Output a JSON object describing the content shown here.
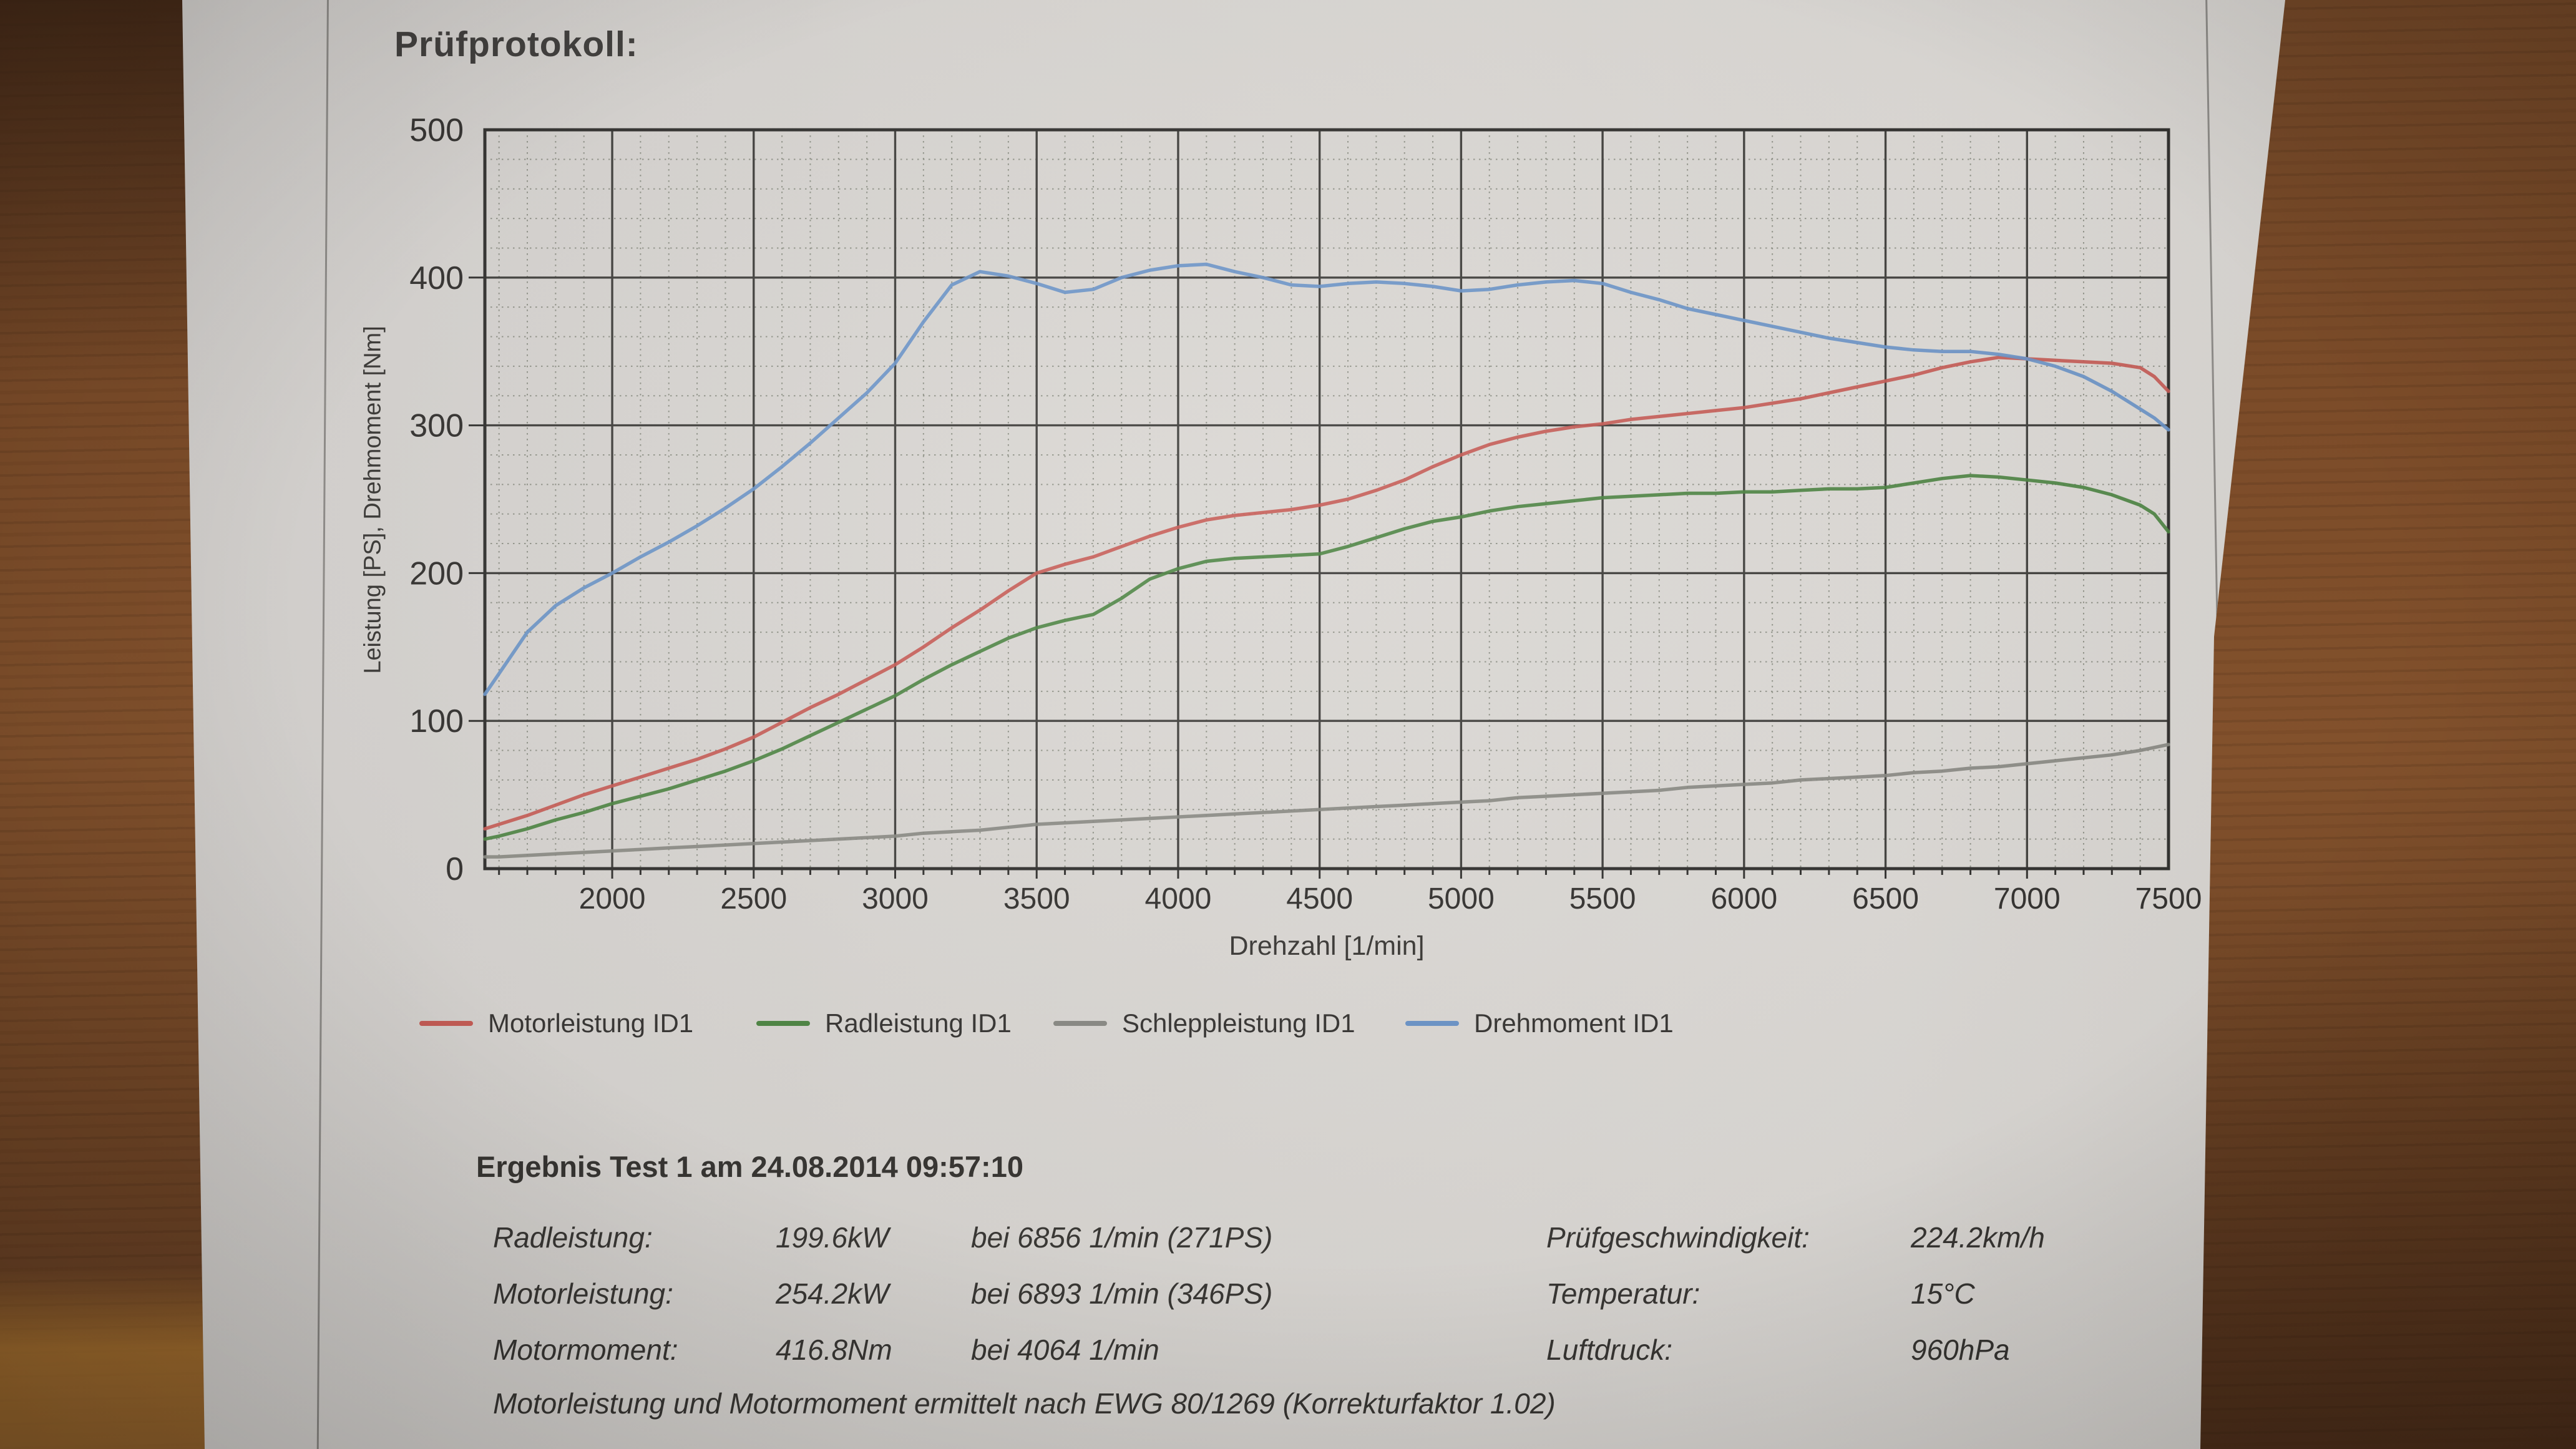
{
  "photo": {
    "description": "printed dyno test protocol lying on a wooden table",
    "colors": {
      "wood": "#7c4c29",
      "paper": "#d8d5d1",
      "ink": "#2f2d2b"
    }
  },
  "document": {
    "title": "Prüfprotokoll:",
    "results": {
      "header": "Ergebnis Test 1 am 24.08.2014 09:57:10",
      "rows": [
        {
          "label": "Radleistung:",
          "value": "199.6kW",
          "at": "bei 6856 1/min (271PS)",
          "label_right": "Prüfgeschwindigkeit:",
          "value_right": "224.2km/h"
        },
        {
          "label": "Motorleistung:",
          "value": "254.2kW",
          "at": "bei 6893 1/min (346PS)",
          "label_right": "Temperatur:",
          "value_right": "15°C"
        },
        {
          "label": "Motormoment:",
          "value": "416.8Nm",
          "at": "bei 4064 1/min",
          "label_right": "Luftdruck:",
          "value_right": "960hPa"
        }
      ],
      "note": "Motorleistung und Motormoment ermittelt nach EWG 80/1269 (Korrekturfaktor 1.02)"
    }
  },
  "chart_data": {
    "type": "line",
    "title": "",
    "xlabel": "Drehzahl [1/min]",
    "ylabel": "Leistung [PS], Drehmoment [Nm]",
    "xlim": [
      1550,
      7500
    ],
    "ylim": [
      0,
      500
    ],
    "x_major_ticks": [
      2000,
      2500,
      3000,
      3500,
      4000,
      4500,
      5000,
      5500,
      6000,
      6500,
      7000,
      7500
    ],
    "y_major_ticks": [
      0,
      100,
      200,
      300,
      400,
      500
    ],
    "x_minor_step": 100,
    "y_minor_step": 20,
    "grid": "major solid + minor dotted",
    "legend_position": "below chart",
    "x": [
      1550,
      1600,
      1700,
      1800,
      1900,
      2000,
      2100,
      2200,
      2300,
      2400,
      2500,
      2600,
      2700,
      2800,
      2900,
      3000,
      3100,
      3200,
      3300,
      3400,
      3500,
      3600,
      3700,
      3800,
      3900,
      4000,
      4100,
      4200,
      4300,
      4400,
      4500,
      4600,
      4700,
      4800,
      4900,
      5000,
      5100,
      5200,
      5300,
      5400,
      5500,
      5600,
      5700,
      5800,
      5900,
      6000,
      6100,
      6200,
      6300,
      6400,
      6500,
      6600,
      6700,
      6800,
      6900,
      7000,
      7100,
      7200,
      7300,
      7400,
      7450,
      7500
    ],
    "series": [
      {
        "name": "Motorleistung ID1",
        "unit": "PS",
        "color": "#c4564f",
        "values": [
          27,
          30,
          36,
          43,
          50,
          56,
          62,
          68,
          74,
          81,
          89,
          99,
          109,
          118,
          128,
          138,
          150,
          163,
          175,
          188,
          200,
          206,
          211,
          218,
          225,
          231,
          236,
          239,
          241,
          243,
          246,
          250,
          256,
          263,
          272,
          280,
          287,
          292,
          296,
          299,
          301,
          304,
          306,
          308,
          310,
          312,
          315,
          318,
          322,
          326,
          330,
          334,
          339,
          343,
          346,
          345,
          344,
          343,
          342,
          339,
          333,
          323
        ]
      },
      {
        "name": "Radleistung ID1",
        "unit": "PS",
        "color": "#47803c",
        "values": [
          20,
          22,
          27,
          33,
          38,
          44,
          49,
          54,
          60,
          66,
          73,
          81,
          90,
          99,
          108,
          117,
          128,
          138,
          147,
          156,
          163,
          168,
          172,
          183,
          196,
          203,
          208,
          210,
          211,
          212,
          213,
          218,
          224,
          230,
          235,
          238,
          242,
          245,
          247,
          249,
          251,
          252,
          253,
          254,
          254,
          255,
          255,
          256,
          257,
          257,
          258,
          261,
          264,
          266,
          265,
          263,
          261,
          258,
          253,
          246,
          240,
          228
        ]
      },
      {
        "name": "Schleppleistung ID1",
        "unit": "PS",
        "color": "#85857f",
        "values": [
          8,
          8,
          9,
          10,
          11,
          12,
          13,
          14,
          15,
          16,
          17,
          18,
          19,
          20,
          21,
          22,
          24,
          25,
          26,
          28,
          30,
          31,
          32,
          33,
          34,
          35,
          36,
          37,
          38,
          39,
          40,
          41,
          42,
          43,
          44,
          45,
          46,
          48,
          49,
          50,
          51,
          52,
          53,
          55,
          56,
          57,
          58,
          60,
          61,
          62,
          63,
          65,
          66,
          68,
          69,
          71,
          73,
          75,
          77,
          80,
          82,
          84
        ]
      },
      {
        "name": "Drehmoment ID1",
        "unit": "Nm",
        "color": "#6690c6",
        "values": [
          118,
          132,
          160,
          178,
          190,
          200,
          211,
          221,
          232,
          244,
          257,
          272,
          288,
          305,
          322,
          342,
          370,
          395,
          404,
          401,
          396,
          390,
          392,
          400,
          405,
          408,
          409,
          404,
          400,
          395,
          394,
          396,
          397,
          396,
          394,
          391,
          392,
          395,
          397,
          398,
          396,
          390,
          385,
          379,
          375,
          371,
          367,
          363,
          359,
          356,
          353,
          351,
          350,
          350,
          348,
          345,
          340,
          333,
          323,
          311,
          305,
          297
        ]
      }
    ],
    "peaks_from_text": {
      "rad_peak": "199.6kW @ 6856 1/min (271PS)",
      "motor_peak": "254.2kW @ 6893 1/min (346PS)",
      "torque_peak": "416.8Nm @ 4064 1/min"
    }
  }
}
